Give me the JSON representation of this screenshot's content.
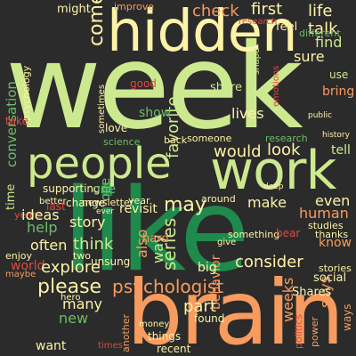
{
  "colors": {
    "background": "#2b2b2b",
    "pale_yellow": "#fdf3a8",
    "light_green": "#cde98f",
    "mid_green": "#6cbd69",
    "dark_green": "#1e8a4c",
    "orange": "#f79b5f",
    "red": "#e2483f",
    "dark_red": "#b8202f"
  },
  "words": {
    "week": "week",
    "like": "like",
    "brain": "brain",
    "hidden": "hidden",
    "work": "work",
    "people": "people",
    "psychologist": "psychologist",
    "come": "come",
    "check": "check",
    "first": "first",
    "life": "life",
    "talk": "talk",
    "find": "find",
    "feel": "feel",
    "sure": "sure",
    "conversation": "conversation",
    "would": "would",
    "look": "look",
    "favorite": "favorite",
    "lives": "lives",
    "show": "show",
    "may": "may",
    "series": "series",
    "make": "make",
    "human": "human",
    "even": "even",
    "think": "think",
    "story": "story",
    "ideas": "ideas",
    "help": "help",
    "often": "often",
    "world": "world",
    "explore": "explore",
    "please": "please",
    "many": "many",
    "new": "new",
    "consider": "consider",
    "behavior": "behavior",
    "part": "part",
    "says": "says",
    "weeks": "weeks",
    "know": "know",
    "revisit": "revisit",
    "also": "also",
    "way": "way",
    "one": "one",
    "newsletter": "newsletter",
    "supporting": "supporting",
    "time": "time",
    "might": "might",
    "improve": "improve",
    "research": "research",
    "share": "share",
    "good": "good",
    "bring": "bring",
    "use": "use",
    "different": "different",
    "shape": "shape",
    "psychology": "psychology",
    "sometimes": "sometimes",
    "love": "love",
    "science": "science",
    "back": "back",
    "someone": "someone",
    "change": "change",
    "better": "better",
    "year": "year",
    "around": "around",
    "years": "years",
    "last": "last",
    "enjoy": "enjoy",
    "two": "two",
    "unsung": "unsung",
    "hard": "hard",
    "big": "big",
    "something": "something",
    "studies": "studies",
    "thanks": "thanks",
    "stories": "stories",
    "social": "social",
    "Shares": "Shares",
    "ways": "ways",
    "power": "power",
    "politics": "politics",
    "found": "found",
    "things": "things",
    "recent": "recent",
    "money": "money",
    "want": "want",
    "another": "another",
    "hero": "hero",
    "maybe": "maybe",
    "take": "take",
    "emotions": "emotions",
    "bear": "bear",
    "tell": "tell",
    "ever": "ever",
    "give": "give",
    "deep": "deep",
    "history": "history",
    "public": "public",
    "times": "times"
  }
}
